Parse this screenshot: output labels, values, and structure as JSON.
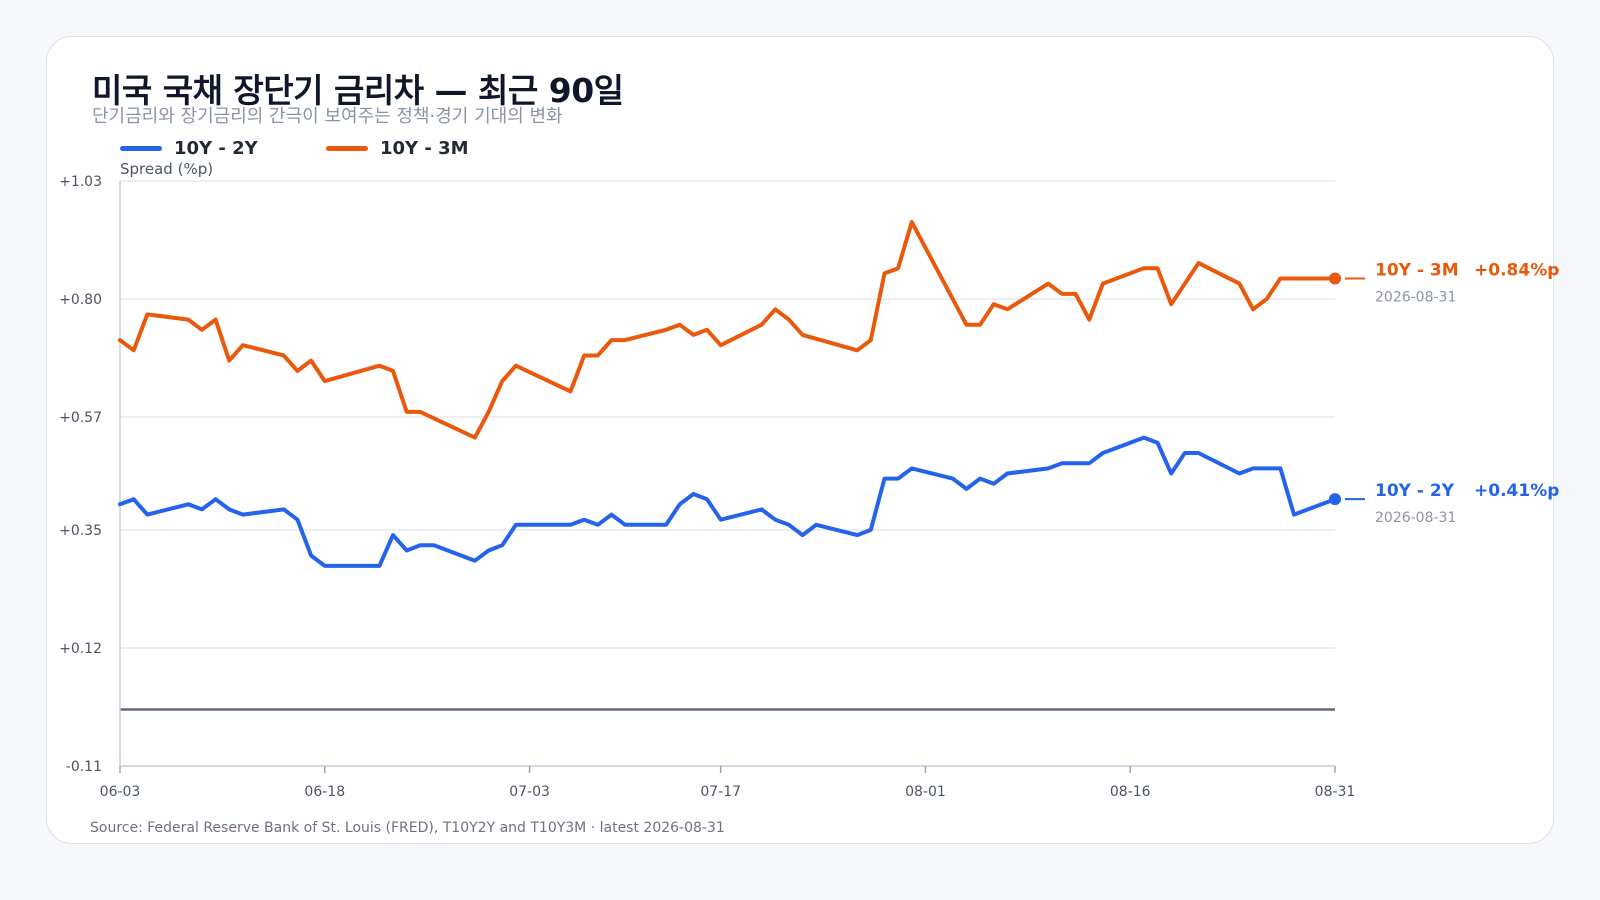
{
  "title": "미국 국채 장단기 금리차 — 최근 90일",
  "subtitle": "단기금리와 장기금리의 간극이 보여주는 정책·경기 기대의 변화",
  "footer": "Source: Federal Reserve Bank of St. Louis (FRED), T10Y2Y and T10Y3M · latest 2026-08-31",
  "chart_data": {
    "type": "line",
    "ylabel": "Spread (%p)",
    "ylim": [
      -0.11,
      1.03
    ],
    "yticks": [
      "+1.03",
      "+0.80",
      "+0.57",
      "+0.35",
      "+0.12",
      "-0.11"
    ],
    "ytick_values": [
      1.03,
      0.8,
      0.57,
      0.35,
      0.12,
      -0.11
    ],
    "xticks": [
      "06-03",
      "06-18",
      "07-03",
      "07-17",
      "08-01",
      "08-16",
      "08-31"
    ],
    "reference_line": 0,
    "grid": true,
    "series": [
      {
        "name": "10Y - 2Y",
        "color": "#2563eb",
        "end_label": "10Y - 2Y",
        "end_value_text": "+0.41%p",
        "end_date": "2026-08-31",
        "points": [
          [
            "06-03",
            0.4
          ],
          [
            "06-04",
            0.41
          ],
          [
            "06-05",
            0.38
          ],
          [
            "06-08",
            0.4
          ],
          [
            "06-09",
            0.39
          ],
          [
            "06-10",
            0.41
          ],
          [
            "06-11",
            0.39
          ],
          [
            "06-12",
            0.38
          ],
          [
            "06-15",
            0.39
          ],
          [
            "06-16",
            0.37
          ],
          [
            "06-17",
            0.3
          ],
          [
            "06-18",
            0.28
          ],
          [
            "06-19",
            0.28
          ],
          [
            "06-22",
            0.28
          ],
          [
            "06-23",
            0.34
          ],
          [
            "06-24",
            0.31
          ],
          [
            "06-25",
            0.32
          ],
          [
            "06-26",
            0.32
          ],
          [
            "06-29",
            0.29
          ],
          [
            "06-30",
            0.31
          ],
          [
            "07-01",
            0.32
          ],
          [
            "07-02",
            0.36
          ],
          [
            "07-05",
            0.36
          ],
          [
            "07-06",
            0.36
          ],
          [
            "07-07",
            0.37
          ],
          [
            "07-08",
            0.36
          ],
          [
            "07-09",
            0.38
          ],
          [
            "07-10",
            0.36
          ],
          [
            "07-13",
            0.36
          ],
          [
            "07-14",
            0.4
          ],
          [
            "07-15",
            0.42
          ],
          [
            "07-16",
            0.41
          ],
          [
            "07-17",
            0.37
          ],
          [
            "07-20",
            0.39
          ],
          [
            "07-21",
            0.37
          ],
          [
            "07-22",
            0.36
          ],
          [
            "07-23",
            0.34
          ],
          [
            "07-24",
            0.36
          ],
          [
            "07-27",
            0.34
          ],
          [
            "07-28",
            0.35
          ],
          [
            "07-29",
            0.45
          ],
          [
            "07-30",
            0.45
          ],
          [
            "07-31",
            0.47
          ],
          [
            "08-03",
            0.45
          ],
          [
            "08-04",
            0.43
          ],
          [
            "08-05",
            0.45
          ],
          [
            "08-06",
            0.44
          ],
          [
            "08-07",
            0.46
          ],
          [
            "08-10",
            0.47
          ],
          [
            "08-11",
            0.48
          ],
          [
            "08-12",
            0.48
          ],
          [
            "08-13",
            0.48
          ],
          [
            "08-14",
            0.5
          ],
          [
            "08-17",
            0.53
          ],
          [
            "08-18",
            0.52
          ],
          [
            "08-19",
            0.46
          ],
          [
            "08-20",
            0.5
          ],
          [
            "08-21",
            0.5
          ],
          [
            "08-24",
            0.46
          ],
          [
            "08-25",
            0.47
          ],
          [
            "08-26",
            0.47
          ],
          [
            "08-27",
            0.47
          ],
          [
            "08-28",
            0.38
          ],
          [
            "08-31",
            0.41
          ]
        ]
      },
      {
        "name": "10Y - 3M",
        "color": "#ea580c",
        "end_label": "10Y - 3M",
        "end_value_text": "+0.84%p",
        "end_date": "2026-08-31",
        "points": [
          [
            "06-03",
            0.72
          ],
          [
            "06-04",
            0.7
          ],
          [
            "06-05",
            0.77
          ],
          [
            "06-08",
            0.76
          ],
          [
            "06-09",
            0.74
          ],
          [
            "06-10",
            0.76
          ],
          [
            "06-11",
            0.68
          ],
          [
            "06-12",
            0.71
          ],
          [
            "06-15",
            0.69
          ],
          [
            "06-16",
            0.66
          ],
          [
            "06-17",
            0.68
          ],
          [
            "06-18",
            0.64
          ],
          [
            "06-22",
            0.67
          ],
          [
            "06-23",
            0.66
          ],
          [
            "06-24",
            0.58
          ],
          [
            "06-25",
            0.58
          ],
          [
            "06-29",
            0.53
          ],
          [
            "06-30",
            0.58
          ],
          [
            "07-01",
            0.64
          ],
          [
            "07-02",
            0.67
          ],
          [
            "07-06",
            0.62
          ],
          [
            "07-07",
            0.69
          ],
          [
            "07-08",
            0.69
          ],
          [
            "07-09",
            0.72
          ],
          [
            "07-10",
            0.72
          ],
          [
            "07-13",
            0.74
          ],
          [
            "07-14",
            0.75
          ],
          [
            "07-15",
            0.73
          ],
          [
            "07-16",
            0.74
          ],
          [
            "07-17",
            0.71
          ],
          [
            "07-20",
            0.75
          ],
          [
            "07-21",
            0.78
          ],
          [
            "07-22",
            0.76
          ],
          [
            "07-23",
            0.73
          ],
          [
            "07-27",
            0.7
          ],
          [
            "07-28",
            0.72
          ],
          [
            "07-29",
            0.85
          ],
          [
            "07-30",
            0.86
          ],
          [
            "07-31",
            0.95
          ],
          [
            "08-04",
            0.75
          ],
          [
            "08-05",
            0.75
          ],
          [
            "08-06",
            0.79
          ],
          [
            "08-07",
            0.78
          ],
          [
            "08-10",
            0.83
          ],
          [
            "08-11",
            0.81
          ],
          [
            "08-12",
            0.81
          ],
          [
            "08-13",
            0.76
          ],
          [
            "08-14",
            0.83
          ],
          [
            "08-17",
            0.86
          ],
          [
            "08-18",
            0.86
          ],
          [
            "08-19",
            0.79
          ],
          [
            "08-21",
            0.87
          ],
          [
            "08-24",
            0.83
          ],
          [
            "08-25",
            0.78
          ],
          [
            "08-26",
            0.8
          ],
          [
            "08-27",
            0.84
          ],
          [
            "08-28",
            0.84
          ],
          [
            "08-31",
            0.84
          ]
        ]
      }
    ]
  }
}
